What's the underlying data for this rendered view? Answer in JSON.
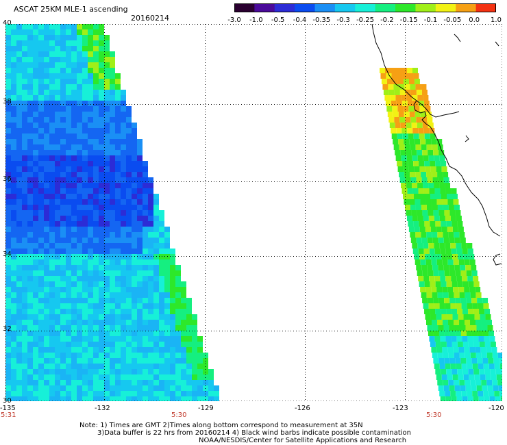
{
  "header": {
    "title": "ASCAT 25KM MLE-1 ascending",
    "date": "20160214"
  },
  "colorbar": {
    "labels": [
      "-3.0",
      "-1.0",
      "-0.5",
      "-0.4",
      "-0.35",
      "-0.3",
      "-0.25",
      "-0.2",
      "-0.15",
      "-0.1",
      "-0.05",
      "0.0",
      "1.0"
    ],
    "colors": [
      "#2a0030",
      "#4a0a9a",
      "#2c2cd6",
      "#0a4cf0",
      "#1a8ff5",
      "#16c8f0",
      "#17f0d8",
      "#15ef80",
      "#2de82a",
      "#a0ef18",
      "#f2f214",
      "#f6a014",
      "#f43212"
    ]
  },
  "axes": {
    "lat_labels": [
      "40",
      "38",
      "36",
      "34",
      "32",
      "30"
    ],
    "lon_labels": [
      "-135",
      "-132",
      "-129",
      "-126",
      "-123",
      "-120"
    ]
  },
  "times": [
    "5:31",
    "5:30",
    "5:30"
  ],
  "footer": {
    "note1": "Note: 1) Times are GMT 2)Times along bottom correspond to measurement at 35N",
    "note2": "3)Data buffer is 22 hrs from 20160214 4) Black wind barbs indicate possible contamination",
    "credit": "NOAA/NESDIS/Center for Satellite Applications and Research"
  }
}
